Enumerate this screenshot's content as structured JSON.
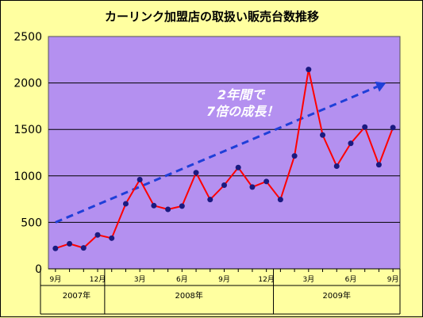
{
  "chart_data": {
    "type": "line",
    "title": "カーリンク加盟店の取扱い販売台数推移",
    "ylim": [
      0,
      2500
    ],
    "yticks": [
      0,
      500,
      1000,
      1500,
      2000,
      2500
    ],
    "grid": true,
    "background_color": "#b490f0",
    "line_color": "#ff0000",
    "marker_color": "#1a1a80",
    "trend_color": "#1f3fd8",
    "x_tick_labels": [
      {
        "index": 0,
        "label": "9月"
      },
      {
        "index": 3,
        "label": "12月"
      },
      {
        "index": 6,
        "label": "3月"
      },
      {
        "index": 9,
        "label": "6月"
      },
      {
        "index": 12,
        "label": "9月"
      },
      {
        "index": 15,
        "label": "12月"
      },
      {
        "index": 18,
        "label": "3月"
      },
      {
        "index": 21,
        "label": "6月"
      },
      {
        "index": 24,
        "label": "9月"
      }
    ],
    "years": [
      {
        "label": "2007年",
        "start": 0,
        "end": 3
      },
      {
        "label": "2008年",
        "start": 4,
        "end": 15
      },
      {
        "label": "2009年",
        "start": 16,
        "end": 24
      }
    ],
    "series": [
      {
        "values": [
          220,
          270,
          225,
          365,
          330,
          700,
          960,
          680,
          640,
          675,
          1035,
          745,
          900,
          1090,
          880,
          940,
          745,
          1215,
          2145,
          1440,
          1105,
          1350,
          1525,
          1120,
          1520
        ]
      }
    ],
    "trend_line": {
      "from": [
        0,
        500
      ],
      "to": [
        23.5,
        2000
      ]
    },
    "annotation": {
      "line1": "2年間で",
      "line2": "7倍の成長！"
    }
  }
}
